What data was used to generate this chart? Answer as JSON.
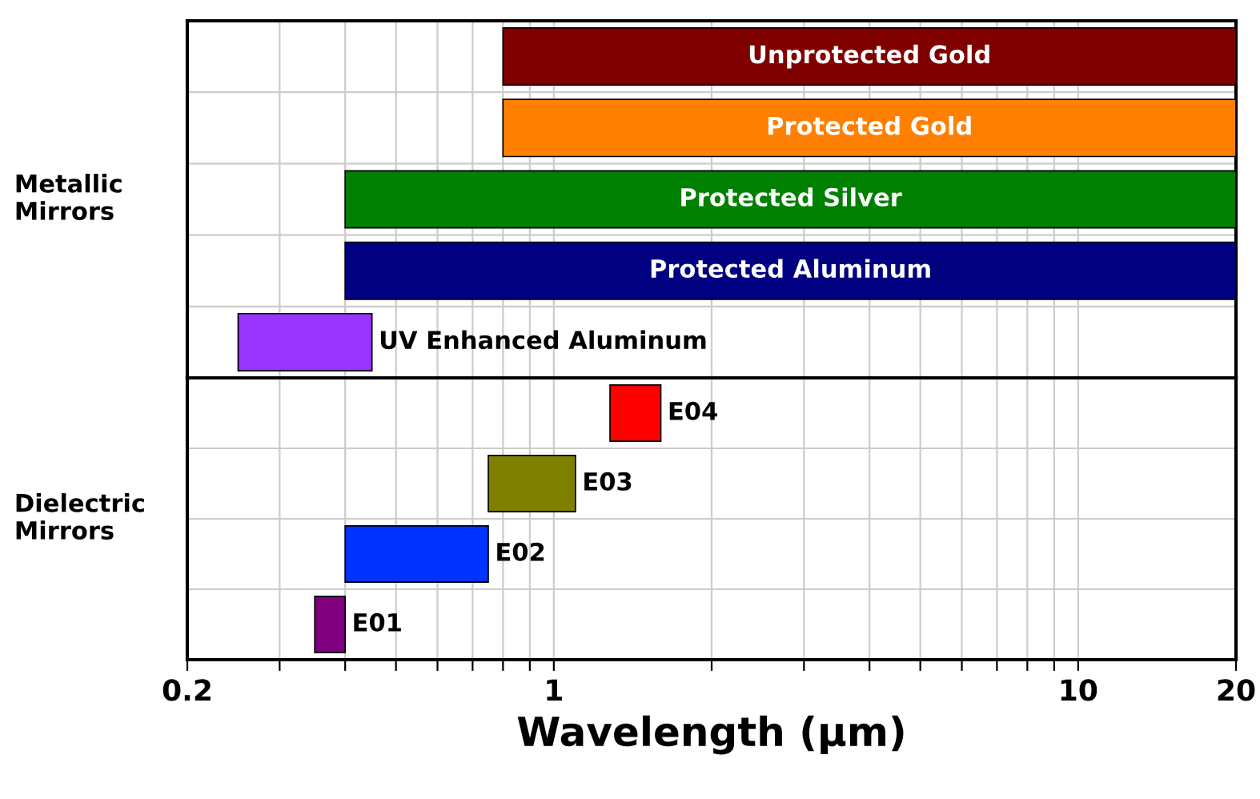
{
  "chart_data": [
    {
      "type": "bar",
      "orientation": "horizontal",
      "ylabel": "Metallic\nMirrors",
      "categories": [
        "Unprotected Gold",
        "Protected Gold",
        "Protected Silver",
        "Protected Aluminum",
        "UV Enhanced Aluminum"
      ],
      "base": [
        0.8,
        0.8,
        0.4,
        0.4,
        0.25
      ],
      "values": [
        19.2,
        19.2,
        19.6,
        19.6,
        0.2
      ],
      "colors": [
        "#800000",
        "#ff8000",
        "#008000",
        "#000080",
        "#9933ff"
      ],
      "log": "x",
      "xlim": [
        0.2,
        20
      ],
      "xticks": [
        {
          "value": 0.2,
          "label": null
        },
        {
          "value": 0.3,
          "label": null
        },
        {
          "value": 0.4,
          "label": null
        },
        {
          "value": 0.5,
          "label": null
        },
        {
          "value": 0.6,
          "label": null
        },
        {
          "value": 0.7,
          "label": null
        },
        {
          "value": 0.8,
          "label": null
        },
        {
          "value": 0.9,
          "label": null
        },
        {
          "value": 1,
          "label": null
        },
        {
          "value": 2,
          "label": null
        },
        {
          "value": 3,
          "label": null
        },
        {
          "value": 4,
          "label": null
        },
        {
          "value": 5,
          "label": null
        },
        {
          "value": 6,
          "label": null
        },
        {
          "value": 7,
          "label": null
        },
        {
          "value": 8,
          "label": null
        },
        {
          "value": 9,
          "label": null
        },
        {
          "value": 10,
          "label": null
        },
        {
          "value": 20,
          "label": null
        }
      ],
      "grid": true,
      "tick_labels": false
    },
    {
      "type": "bar",
      "orientation": "horizontal",
      "ylabel": "Dielectric\nMirrors",
      "xlabel": "Wavelength (µm)",
      "categories": [
        "E04",
        "E03",
        "E02",
        "E01"
      ],
      "base": [
        1.28,
        0.75,
        0.4,
        0.35
      ],
      "values": [
        0.32,
        0.35,
        0.35,
        0.05
      ],
      "colors": [
        "#ff0000",
        "#808000",
        "#0033ff",
        "#800080"
      ],
      "log": "x",
      "xlim": [
        0.2,
        20
      ],
      "xticks": [
        0.2,
        {
          "value": 0.3,
          "label": null
        },
        {
          "value": 0.4,
          "label": null
        },
        {
          "value": 0.5,
          "label": null
        },
        {
          "value": 0.6,
          "label": null
        },
        {
          "value": 0.7,
          "label": null
        },
        {
          "value": 0.8,
          "label": null
        },
        {
          "value": 0.9,
          "label": null
        },
        1,
        {
          "value": 2,
          "label": null
        },
        {
          "value": 3,
          "label": null
        },
        {
          "value": 4,
          "label": null
        },
        {
          "value": 5,
          "label": null
        },
        {
          "value": 6,
          "label": null
        },
        {
          "value": 7,
          "label": null
        },
        {
          "value": 8,
          "label": null
        },
        {
          "value": 9,
          "label": null
        },
        10,
        20
      ],
      "grid": true,
      "tick_labels": "x"
    }
  ]
}
